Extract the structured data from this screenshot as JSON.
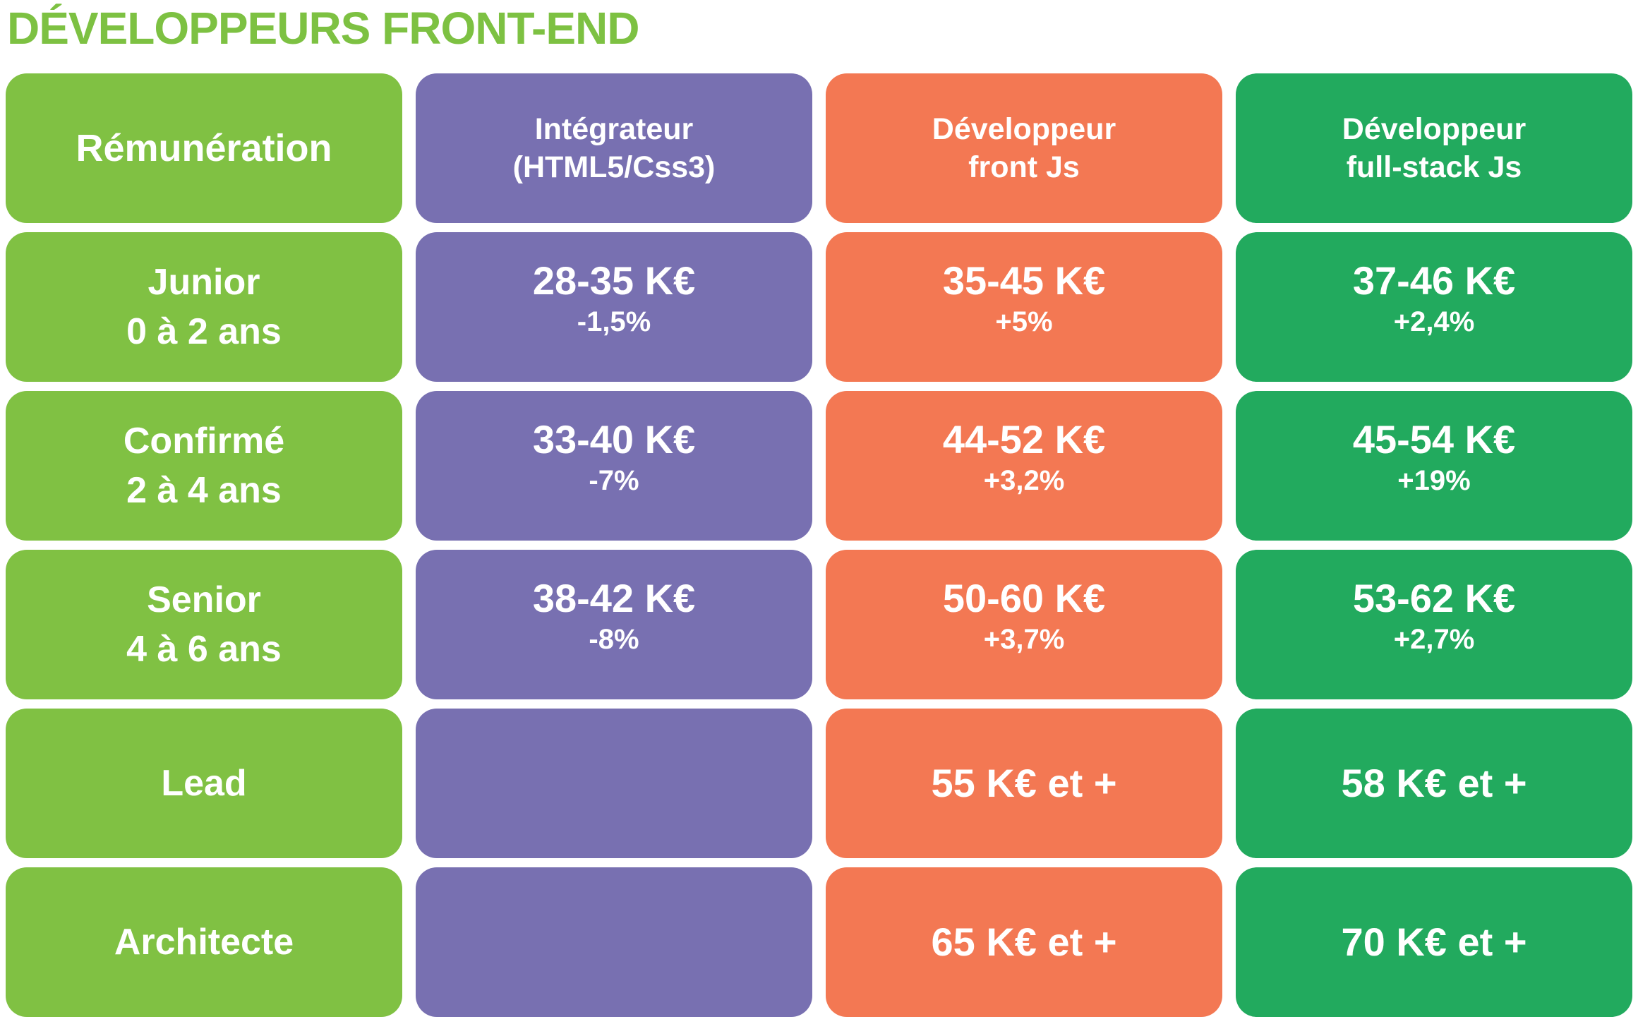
{
  "title": "DÉVELOPPEURS FRONT-END",
  "colors": {
    "title": "#7dc142",
    "label_column": "#80c143",
    "integrateur": "#7870b1",
    "front_js": "#f37853",
    "fullstack_js": "#22aa5e"
  },
  "header": {
    "remuneration": "Rémunération",
    "integrateur": [
      "Intégrateur",
      "(HTML5/Css3)"
    ],
    "front_js": [
      "Développeur",
      "front Js"
    ],
    "fullstack_js": [
      "Développeur",
      "full-stack Js"
    ]
  },
  "rows": [
    {
      "label": [
        "Junior",
        "0 à 2 ans"
      ],
      "integrateur": {
        "range": "28-35 K€",
        "delta": "-1,5%"
      },
      "front_js": {
        "range": "35-45 K€",
        "delta": "+5%"
      },
      "fullstack_js": {
        "range": "37-46 K€",
        "delta": "+2,4%"
      }
    },
    {
      "label": [
        "Confirmé",
        "2 à 4 ans"
      ],
      "integrateur": {
        "range": "33-40 K€",
        "delta": "-7%"
      },
      "front_js": {
        "range": "44-52 K€",
        "delta": "+3,2%"
      },
      "fullstack_js": {
        "range": "45-54 K€",
        "delta": "+19%"
      }
    },
    {
      "label": [
        "Senior",
        "4 à 6 ans"
      ],
      "integrateur": {
        "range": "38-42 K€",
        "delta": "-8%"
      },
      "front_js": {
        "range": "50-60 K€",
        "delta": "+3,7%"
      },
      "fullstack_js": {
        "range": "53-62 K€",
        "delta": "+2,7%"
      }
    },
    {
      "label": [
        "Lead"
      ],
      "integrateur": {},
      "front_js": {
        "value": "55 K€ et +"
      },
      "fullstack_js": {
        "value": "58 K€ et +"
      }
    },
    {
      "label": [
        "Architecte"
      ],
      "integrateur": {},
      "front_js": {
        "value": "65 K€ et +"
      },
      "fullstack_js": {
        "value": "70 K€ et +"
      }
    }
  ]
}
